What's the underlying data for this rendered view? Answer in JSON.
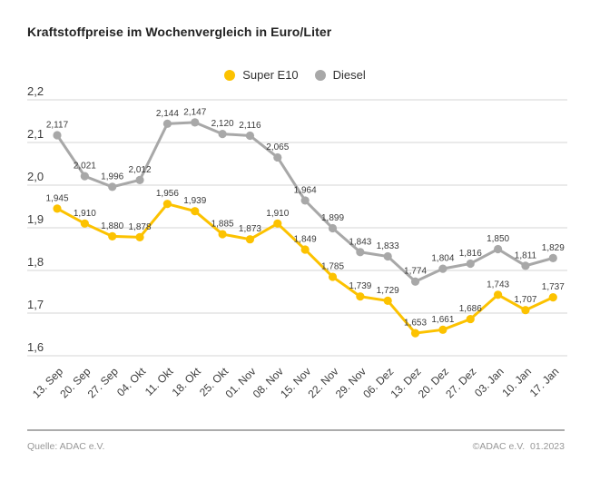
{
  "title": "Kraftstoffpreise im Wochenvergleich in Euro/Liter",
  "footer": {
    "source": "Quelle: ADAC e.V.",
    "copyright": "©ADAC e.V.  01.2023"
  },
  "chart_data": {
    "type": "line",
    "title": "Kraftstoffpreise im Wochenvergleich in Euro/Liter",
    "categories": [
      "13. Sep",
      "20. Sep",
      "27. Sep",
      "04. Okt",
      "11. Okt",
      "18. Okt",
      "25. Okt",
      "01. Nov",
      "08. Nov",
      "15. Nov",
      "22. Nov",
      "29. Nov",
      "06. Dez",
      "13. Dez",
      "20. Dez",
      "27. Dez",
      "03. Jan",
      "10. Jan",
      "17. Jan"
    ],
    "series": [
      {
        "name": "Super E10",
        "color": "#fcc200",
        "values": [
          1.945,
          1.91,
          1.88,
          1.878,
          1.956,
          1.939,
          1.885,
          1.873,
          1.91,
          1.849,
          1.785,
          1.739,
          1.729,
          1.653,
          1.661,
          1.686,
          1.743,
          1.707,
          1.737
        ]
      },
      {
        "name": "Diesel",
        "color": "#a8a8a8",
        "values": [
          2.117,
          2.021,
          1.996,
          2.012,
          2.144,
          2.147,
          2.12,
          2.116,
          2.065,
          1.964,
          1.899,
          1.843,
          1.833,
          1.774,
          1.804,
          1.816,
          1.85,
          1.811,
          1.829
        ]
      }
    ],
    "xlabel": "",
    "ylabel": "",
    "ylim": [
      1.6,
      2.2
    ],
    "yticks": [
      2.2,
      2.1,
      2.0,
      1.9,
      1.8,
      1.7,
      1.6
    ],
    "decimal_separator": ",",
    "grid": true,
    "legend_position": "top-center",
    "colors": {
      "grid_line": "#dedede",
      "tick_label": "#3c3c3c",
      "data_label": "#3a3a3a"
    }
  }
}
